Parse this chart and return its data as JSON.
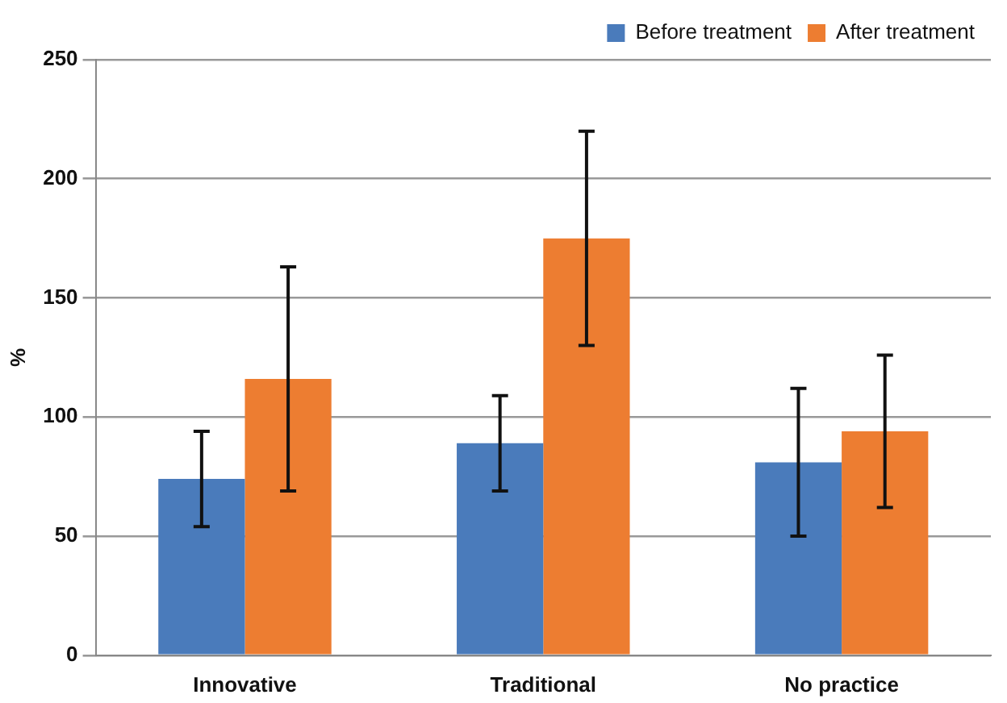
{
  "chart_data": {
    "type": "bar",
    "ylabel": "%",
    "categories": [
      "Innovative",
      "Traditional",
      "No practice"
    ],
    "series": [
      {
        "name": "Before treatment",
        "color": "#4a7bbb",
        "values": [
          74,
          89,
          81
        ],
        "errors": [
          20,
          20,
          31
        ]
      },
      {
        "name": "After treatment",
        "color": "#ed7d31",
        "values": [
          116,
          175,
          94
        ],
        "errors": [
          47,
          45,
          32
        ]
      }
    ],
    "ylim": [
      0,
      250
    ],
    "yticks": [
      0,
      50,
      100,
      150,
      200,
      250
    ],
    "grid": "y",
    "legend": "top right"
  }
}
